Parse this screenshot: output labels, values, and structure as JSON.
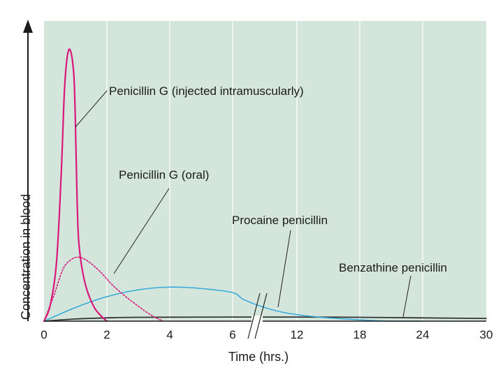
{
  "chart_data": {
    "type": "line",
    "title": "",
    "xlabel": "Time (hrs.)",
    "ylabel": "Concentration in blood",
    "x_ticks": [
      "0",
      "2",
      "4",
      "6",
      "12",
      "18",
      "24",
      "30"
    ],
    "x_break_after": "6",
    "colors": {
      "background": "#d4e6dc",
      "grid": "#f4faf6",
      "axis": "#1a1a1a",
      "penicillin_g_im": "#d8187a",
      "penicillin_g_oral": "#d8187a",
      "procaine": "#35a8d8",
      "benzathine": "#333333",
      "leader": "#222222"
    },
    "series": [
      {
        "name": "Penicillin G (injected intramuscularly)",
        "style": "solid",
        "points": [
          [
            0,
            0
          ],
          [
            0.2,
            0.06
          ],
          [
            0.4,
            0.22
          ],
          [
            0.55,
            0.55
          ],
          [
            0.65,
            0.85
          ],
          [
            0.75,
            0.98
          ],
          [
            0.85,
            0.99
          ],
          [
            0.95,
            0.9
          ],
          [
            1.0,
            0.72
          ],
          [
            1.05,
            0.45
          ],
          [
            1.1,
            0.3
          ],
          [
            1.2,
            0.2
          ],
          [
            1.35,
            0.12
          ],
          [
            1.6,
            0.05
          ],
          [
            1.85,
            0.015
          ],
          [
            2.0,
            0.0
          ]
        ]
      },
      {
        "name": "Penicillin G (oral)",
        "style": "dotted",
        "points": [
          [
            0,
            0
          ],
          [
            0.3,
            0.09
          ],
          [
            0.6,
            0.19
          ],
          [
            0.85,
            0.225
          ],
          [
            1.1,
            0.235
          ],
          [
            1.4,
            0.22
          ],
          [
            1.8,
            0.18
          ],
          [
            2.2,
            0.13
          ],
          [
            2.6,
            0.09
          ],
          [
            3.0,
            0.055
          ],
          [
            3.3,
            0.03
          ],
          [
            3.6,
            0.01
          ],
          [
            3.8,
            0.0
          ]
        ]
      },
      {
        "name": "Procaine penicillin",
        "style": "solid",
        "points": [
          [
            0,
            0
          ],
          [
            1,
            0.05
          ],
          [
            2,
            0.09
          ],
          [
            3,
            0.115
          ],
          [
            4,
            0.125
          ],
          [
            5,
            0.12
          ],
          [
            6,
            0.105
          ],
          [
            7,
            0.08
          ],
          [
            9,
            0.05
          ],
          [
            11,
            0.03
          ],
          [
            14,
            0.015
          ],
          [
            18,
            0.005
          ],
          [
            21,
            0.0
          ],
          [
            24,
            0.0
          ]
        ]
      },
      {
        "name": "Benzathine penicillin",
        "style": "solid",
        "points": [
          [
            0,
            0
          ],
          [
            1,
            0.008
          ],
          [
            2,
            0.012
          ],
          [
            3,
            0.014
          ],
          [
            6,
            0.015
          ],
          [
            12,
            0.015
          ],
          [
            18,
            0.014
          ],
          [
            24,
            0.012
          ],
          [
            30,
            0.01
          ]
        ]
      }
    ]
  }
}
